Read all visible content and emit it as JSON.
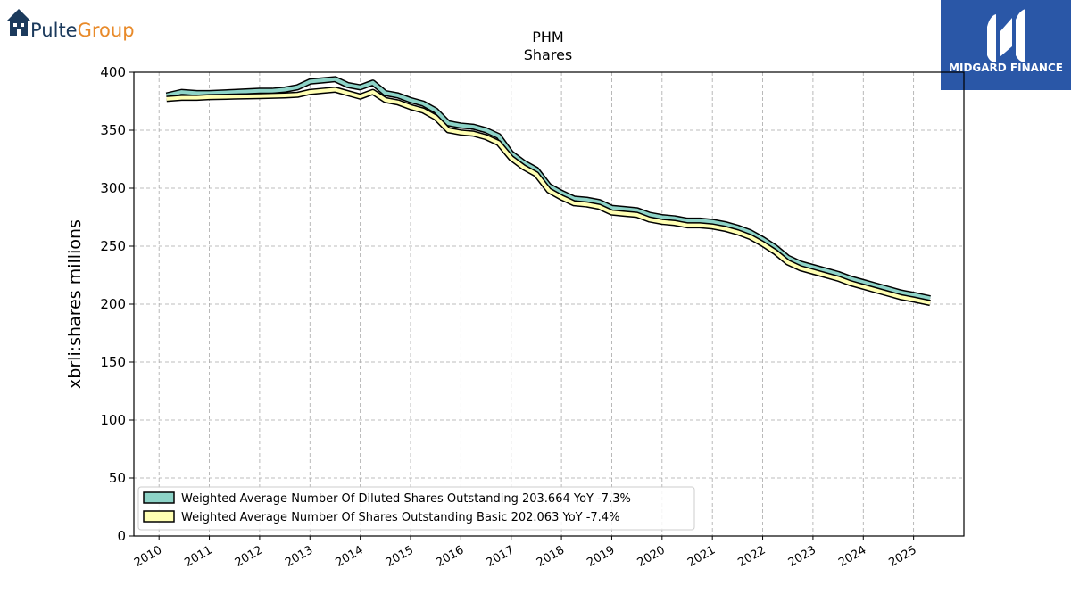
{
  "brand_left": {
    "part1": "Pulte",
    "part2": "Group",
    "icon": "house-icon",
    "color1": "#1b3a5c",
    "color2": "#e88a2a"
  },
  "brand_right": {
    "name": "MIDGARD FINANCE",
    "icon": "midgard-logo-mark",
    "bg_color": "#2a57a7"
  },
  "chart_data": {
    "type": "line",
    "title": "PHM",
    "subtitle": "Shares",
    "xlabel": "",
    "ylabel": "xbrli:shares millions",
    "xlim": [
      2009.5,
      2026.0
    ],
    "ylim": [
      0,
      400
    ],
    "y_ticks": [
      0,
      50,
      100,
      150,
      200,
      250,
      300,
      350,
      400
    ],
    "x_ticks": [
      2010,
      2011,
      2012,
      2013,
      2014,
      2015,
      2016,
      2017,
      2018,
      2019,
      2020,
      2021,
      2022,
      2023,
      2024,
      2025
    ],
    "x_tick_labels": [
      "2010",
      "2011",
      "2012",
      "2013",
      "2014",
      "2015",
      "2016",
      "2017",
      "2018",
      "2019",
      "2020",
      "2021",
      "2022",
      "2023",
      "2024",
      "2025"
    ],
    "grid": true,
    "legend_position": "lower-left",
    "series": [
      {
        "name": "Weighted Average Number Of Diluted Shares Outstanding",
        "legend_label": "Weighted Average Number Of Diluted Shares Outstanding  203.664 YoY -7.3%",
        "color": "#8dd3c7",
        "x": [
          2010.15,
          2010.45,
          2010.75,
          2011.0,
          2011.5,
          2012.0,
          2012.25,
          2012.5,
          2012.75,
          2013.0,
          2013.25,
          2013.5,
          2013.75,
          2014.0,
          2014.25,
          2014.5,
          2014.75,
          2015.0,
          2015.25,
          2015.5,
          2015.75,
          2016.0,
          2016.25,
          2016.5,
          2016.75,
          2017.0,
          2017.25,
          2017.5,
          2017.75,
          2018.0,
          2018.25,
          2018.5,
          2018.75,
          2019.0,
          2019.25,
          2019.5,
          2019.75,
          2020.0,
          2020.25,
          2020.5,
          2020.75,
          2021.0,
          2021.25,
          2021.5,
          2021.75,
          2022.0,
          2022.25,
          2022.5,
          2022.75,
          2023.0,
          2023.25,
          2023.5,
          2023.75,
          2024.0,
          2024.25,
          2024.5,
          2024.75,
          2025.0,
          2025.33
        ],
        "y": [
          380,
          383,
          382,
          382,
          383,
          384,
          384,
          385,
          387,
          392,
          393,
          394,
          389,
          387,
          391,
          382,
          380,
          376,
          373,
          367,
          356,
          354,
          353,
          350,
          345,
          330,
          322,
          316,
          302,
          296,
          291,
          290,
          288,
          283,
          282,
          281,
          277,
          275,
          274,
          272,
          272,
          271,
          269,
          266,
          262,
          256,
          249,
          240,
          235,
          232,
          229,
          226,
          222,
          219,
          216,
          213,
          210,
          208,
          205
        ]
      },
      {
        "name": "Weighted Average Number Of Shares Outstanding Basic",
        "legend_label": "Weighted Average Number Of Shares Outstanding Basic  202.063 YoY -7.4%",
        "color": "#ffffb3",
        "x": [
          2010.15,
          2010.45,
          2010.75,
          2011.0,
          2011.5,
          2012.0,
          2012.25,
          2012.5,
          2012.75,
          2013.0,
          2013.25,
          2013.5,
          2013.75,
          2014.0,
          2014.25,
          2014.5,
          2014.75,
          2015.0,
          2015.25,
          2015.5,
          2015.75,
          2016.0,
          2016.25,
          2016.5,
          2016.75,
          2017.0,
          2017.25,
          2017.5,
          2017.75,
          2018.0,
          2018.25,
          2018.5,
          2018.75,
          2019.0,
          2019.25,
          2019.5,
          2019.75,
          2020.0,
          2020.25,
          2020.5,
          2020.75,
          2021.0,
          2021.25,
          2021.5,
          2021.75,
          2022.0,
          2022.25,
          2022.5,
          2022.75,
          2023.0,
          2023.25,
          2023.5,
          2023.75,
          2024.0,
          2024.25,
          2024.5,
          2024.75,
          2025.0,
          2025.33
        ],
        "y": [
          377,
          378,
          378,
          378.5,
          379,
          379.5,
          379.7,
          380,
          380.5,
          383,
          384,
          385,
          382,
          379,
          383,
          376,
          374,
          370,
          367,
          361,
          350,
          348,
          347,
          344,
          339,
          326,
          318,
          312,
          298,
          292,
          287,
          286,
          284,
          279,
          278,
          277,
          273,
          271,
          270,
          268,
          268,
          267,
          265,
          262,
          258,
          252,
          245,
          236,
          231,
          228,
          225,
          222,
          218,
          215,
          212,
          209,
          206,
          204,
          201
        ]
      }
    ]
  }
}
